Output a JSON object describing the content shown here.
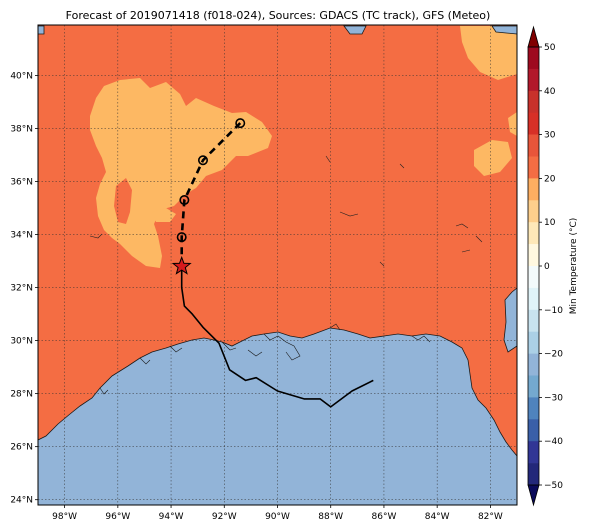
{
  "title": "Forecast of 2019071418 (f018-024), Sources: GDACS (TC track), GFS (Meteo)",
  "map": {
    "lon_range": [
      -99,
      -81
    ],
    "lat_range": [
      23.8,
      41.9
    ],
    "lon_ticks": [
      {
        "value": -98,
        "label": "98°W"
      },
      {
        "value": -96,
        "label": "96°W"
      },
      {
        "value": -94,
        "label": "94°W"
      },
      {
        "value": -92,
        "label": "92°W"
      },
      {
        "value": -90,
        "label": "90°W"
      },
      {
        "value": -88,
        "label": "88°W"
      },
      {
        "value": -86,
        "label": "86°W"
      },
      {
        "value": -84,
        "label": "84°W"
      },
      {
        "value": -82,
        "label": "82°W"
      }
    ],
    "lat_ticks": [
      {
        "value": 24,
        "label": "24°N"
      },
      {
        "value": 26,
        "label": "26°N"
      },
      {
        "value": 28,
        "label": "28°N"
      },
      {
        "value": 30,
        "label": "30°N"
      },
      {
        "value": 32,
        "label": "32°N"
      },
      {
        "value": 34,
        "label": "34°N"
      },
      {
        "value": 36,
        "label": "36°N"
      },
      {
        "value": 38,
        "label": "38°N"
      },
      {
        "value": 40,
        "label": "40°N"
      }
    ],
    "colors": {
      "land_warm": "#f46d43",
      "land_light": "#fdb863",
      "water": "#92b4d8"
    },
    "past_track": [
      [
        -86.4,
        28.5
      ],
      [
        -87.2,
        28.1
      ],
      [
        -88.0,
        27.5
      ],
      [
        -88.4,
        27.8
      ],
      [
        -89.0,
        27.8
      ],
      [
        -90.0,
        28.1
      ],
      [
        -90.8,
        28.6
      ],
      [
        -91.2,
        28.5
      ],
      [
        -91.8,
        28.9
      ],
      [
        -92.2,
        29.9
      ],
      [
        -92.8,
        30.5
      ],
      [
        -93.2,
        31.0
      ],
      [
        -93.5,
        31.3
      ],
      [
        -93.6,
        32.0
      ],
      [
        -93.6,
        32.8
      ]
    ],
    "current_position": [
      -93.6,
      32.8
    ],
    "forecast_points": [
      [
        -93.6,
        33.9
      ],
      [
        -93.5,
        35.3
      ],
      [
        -92.8,
        36.8
      ],
      [
        -91.4,
        38.2
      ]
    ]
  },
  "colorbar": {
    "label": "Min Temperature (°C)",
    "ticks": [
      50,
      40,
      30,
      20,
      10,
      0,
      -10,
      -20,
      -30,
      -40,
      -50
    ],
    "levels": [
      {
        "from": 45,
        "to": 50,
        "color": "#9e0a1f"
      },
      {
        "from": 40,
        "to": 45,
        "color": "#b2182b"
      },
      {
        "from": 35,
        "to": 40,
        "color": "#c8312b"
      },
      {
        "from": 30,
        "to": 35,
        "color": "#d73027"
      },
      {
        "from": 25,
        "to": 30,
        "color": "#e8553a"
      },
      {
        "from": 20,
        "to": 25,
        "color": "#f46d43"
      },
      {
        "from": 15,
        "to": 20,
        "color": "#fdae61"
      },
      {
        "from": 10,
        "to": 15,
        "color": "#fdcf8c"
      },
      {
        "from": 5,
        "to": 10,
        "color": "#fee8b8"
      },
      {
        "from": 0,
        "to": 5,
        "color": "#fff8e0"
      },
      {
        "from": -5,
        "to": 0,
        "color": "#f3fafb"
      },
      {
        "from": -10,
        "to": -5,
        "color": "#e0f3f8"
      },
      {
        "from": -15,
        "to": -10,
        "color": "#c8e3ef"
      },
      {
        "from": -20,
        "to": -15,
        "color": "#abd0e6"
      },
      {
        "from": -25,
        "to": -20,
        "color": "#92b4d8"
      },
      {
        "from": -30,
        "to": -25,
        "color": "#74a9cf"
      },
      {
        "from": -35,
        "to": -30,
        "color": "#4f83bd"
      },
      {
        "from": -40,
        "to": -35,
        "color": "#3a5fa8"
      },
      {
        "from": -45,
        "to": -40,
        "color": "#313695"
      },
      {
        "from": -50,
        "to": -45,
        "color": "#23287a"
      }
    ],
    "over_color": "#800000",
    "under_color": "#0a0a5a"
  }
}
